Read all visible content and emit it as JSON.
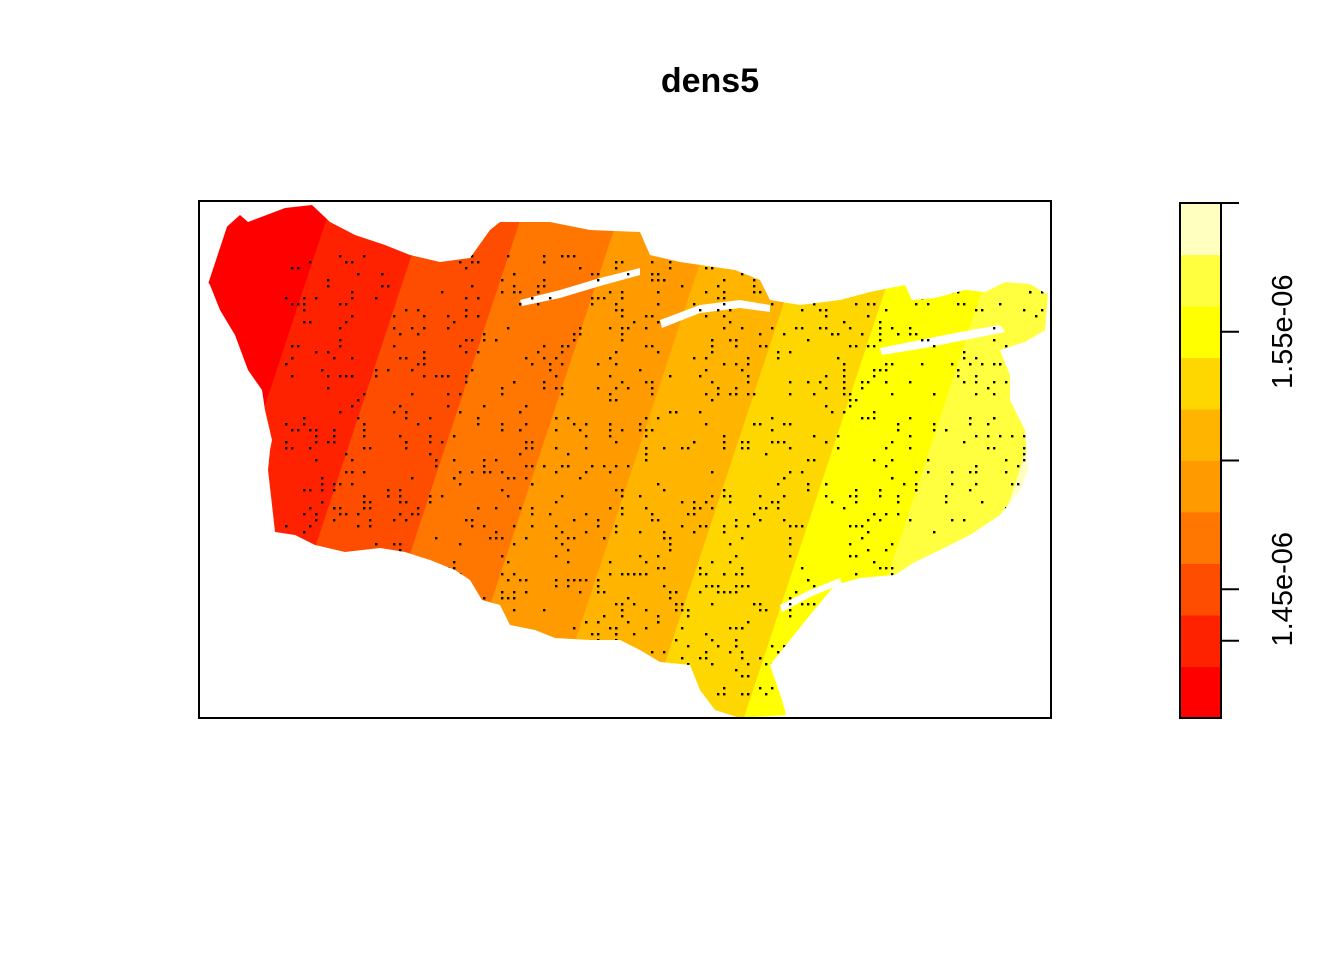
{
  "chart_data": {
    "type": "heatmap",
    "title": "dens5",
    "axes_shown": false,
    "overlay": "point pattern (dots)",
    "legend": {
      "placement": "right",
      "orientation": "vertical",
      "range": [
        1.4e-06,
        1.6e-06
      ],
      "ticks": [
        1.43e-06,
        1.45e-06,
        1.5e-06,
        1.55e-06,
        1.6e-06
      ],
      "tick_labels": [
        "",
        "1.45e-06",
        "",
        "1.55e-06",
        ""
      ],
      "color_bins": [
        "#ff0000",
        "#ff2200",
        "#ff4d00",
        "#ff7700",
        "#ff9a00",
        "#ffb500",
        "#ffd700",
        "#ffff00",
        "#ffff40",
        "#ffffc0"
      ]
    },
    "gradient_direction": "increasing from west (left) to east (right)"
  },
  "colors": {
    "frame": "#000000",
    "background": "#ffffff",
    "points": "#000000"
  }
}
